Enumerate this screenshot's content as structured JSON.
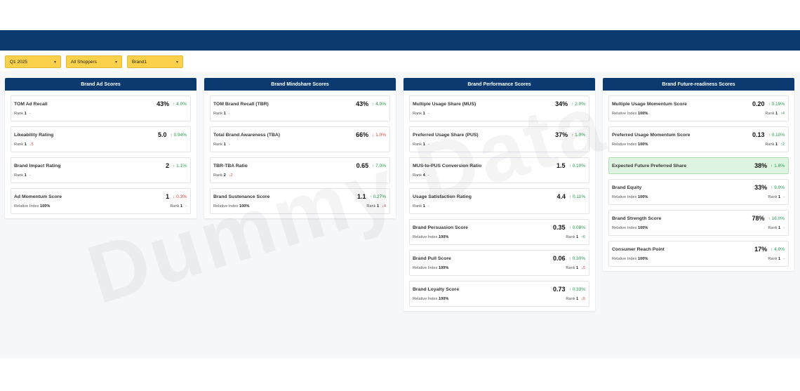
{
  "filters": [
    {
      "label": "Q1 2025"
    },
    {
      "label": "All Shoppers"
    },
    {
      "label": "Brand1"
    }
  ],
  "watermark": "Dummy Data",
  "colors": {
    "header": "#0b3a70",
    "filter": "#fbd14b",
    "up": "#1e9e46",
    "down": "#e03a3a",
    "highlight": "#dff5e1"
  },
  "columns": [
    {
      "title": "Brand Ad Scores",
      "cards": [
        {
          "name": "TOM Ad Recall",
          "value": "43%",
          "change": "4.0%",
          "dir": "up",
          "rank_label": "Rank",
          "rank": "1",
          "rank_change": "-",
          "rank_dir": "none"
        },
        {
          "name": "Likeability Rating",
          "value": "5.0",
          "change": "0.94%",
          "dir": "up",
          "rank_label": "Rank",
          "rank": "1",
          "rank_change": "5",
          "rank_dir": "down"
        },
        {
          "name": "Brand Impact Rating",
          "value": "2",
          "change": "1.1%",
          "dir": "up",
          "rank_label": "Rank",
          "rank": "1",
          "rank_change": "-",
          "rank_dir": "none"
        },
        {
          "name": "Ad Momentum Score",
          "value": "1",
          "change": "0.3%",
          "dir": "down",
          "index_label": "Relative Index",
          "index": "100%",
          "rank_label": "Rank",
          "rank": "1",
          "rank_change": "-",
          "rank_dir": "none"
        }
      ]
    },
    {
      "title": "Brand Mindshare Scores",
      "cards": [
        {
          "name": "TOM Brand Recall (TBR)",
          "value": "43%",
          "change": "4.0%",
          "dir": "up",
          "rank_label": "Rank",
          "rank": "1",
          "rank_change": "-",
          "rank_dir": "none"
        },
        {
          "name": "Total Brand Awareness (TBA)",
          "value": "66%",
          "change": "1.0%",
          "dir": "down",
          "rank_label": "Rank",
          "rank": "1",
          "rank_change": "-",
          "rank_dir": "none"
        },
        {
          "name": "TBR-TBA Ratio",
          "value": "0.65",
          "change": "7.0%",
          "dir": "up",
          "rank_label": "Rank",
          "rank": "2",
          "rank_change": "2",
          "rank_dir": "down"
        },
        {
          "name": "Brand Sustenance Score",
          "value": "1.1",
          "change": "0.27%",
          "dir": "up",
          "index_label": "Relative Index",
          "index": "100%",
          "rank_label": "Rank",
          "rank": "1",
          "rank_change": "4",
          "rank_dir": "down"
        }
      ]
    },
    {
      "title": "Brand Performance Scores",
      "cards": [
        {
          "name": "Multiple Usage Share (MUS)",
          "value": "34%",
          "change": "2.0%",
          "dir": "up",
          "rank_label": "Rank",
          "rank": "1",
          "rank_change": "-",
          "rank_dir": "none"
        },
        {
          "name": "Preferred Usage Share (PUS)",
          "value": "37%",
          "change": "1.0%",
          "dir": "up",
          "rank_label": "Rank",
          "rank": "1",
          "rank_change": "-",
          "rank_dir": "none"
        },
        {
          "name": "MUS-to-PUS Conversion Ratio",
          "value": "1.5",
          "change": "0.10%",
          "dir": "up",
          "rank_label": "Rank",
          "rank": "4",
          "rank_change": "-",
          "rank_dir": "none"
        },
        {
          "name": "Usage Satisfaction Rating",
          "value": "4.4",
          "change": "0.11%",
          "dir": "up",
          "rank_label": "Rank",
          "rank": "1",
          "rank_change": "-",
          "rank_dir": "none"
        },
        {
          "name": "Brand Persuasion Score",
          "value": "0.35",
          "change": "0.08%",
          "dir": "up",
          "index_label": "Relative Index",
          "index": "100%",
          "rank_label": "Rank",
          "rank": "1",
          "rank_change": "6",
          "rank_dir": "up"
        },
        {
          "name": "Brand Pull Score",
          "value": "0.06",
          "change": "0.30%",
          "dir": "up",
          "index_label": "Relative Index",
          "index": "100%",
          "rank_label": "Rank",
          "rank": "1",
          "rank_change": "5",
          "rank_dir": "down"
        },
        {
          "name": "Brand Loyalty Score",
          "value": "0.73",
          "change": "0.33%",
          "dir": "up",
          "index_label": "Relative Index",
          "index": "100%",
          "rank_label": "Rank",
          "rank": "1",
          "rank_change": "5",
          "rank_dir": "down"
        }
      ]
    },
    {
      "title": "Brand Future-readiness Scores",
      "cards": [
        {
          "name": "Multiple Usage Momentum Score",
          "value": "0.20",
          "change": "0.19%",
          "dir": "up",
          "index_label": "Relative Index",
          "index": "100%",
          "rank_label": "Rank",
          "rank": "1",
          "rank_change": "4",
          "rank_dir": "up"
        },
        {
          "name": "Preferred Usage Momentum Score",
          "value": "0.13",
          "change": "0.10%",
          "dir": "up",
          "index_label": "Relative Index",
          "index": "100%",
          "rank_label": "Rank",
          "rank": "1",
          "rank_change": "2",
          "rank_dir": "up"
        },
        {
          "name": "Expected Future Preferred Share",
          "value": "38%",
          "change": "1.8%",
          "dir": "up",
          "highlight": true
        },
        {
          "name": "Brand Equity",
          "value": "33%",
          "change": "9.0%",
          "dir": "up",
          "index_label": "Relative Index",
          "index": "100%",
          "rank_label": "Rank",
          "rank": "1",
          "rank_change": "-",
          "rank_dir": "none"
        },
        {
          "name": "Brand Strength Score",
          "value": "78%",
          "change": "16.0%",
          "dir": "up",
          "index_label": "Relative Index",
          "index": "100%",
          "rank_label": "Rank",
          "rank": "1",
          "rank_change": "-",
          "rank_dir": "none"
        },
        {
          "name": "Consumer Reach Point",
          "value": "17%",
          "change": "4.0%",
          "dir": "up",
          "index_label": "Relative Index",
          "index": "100%",
          "rank_label": "Rank",
          "rank": "1",
          "rank_change": "-",
          "rank_dir": "none"
        }
      ]
    }
  ]
}
